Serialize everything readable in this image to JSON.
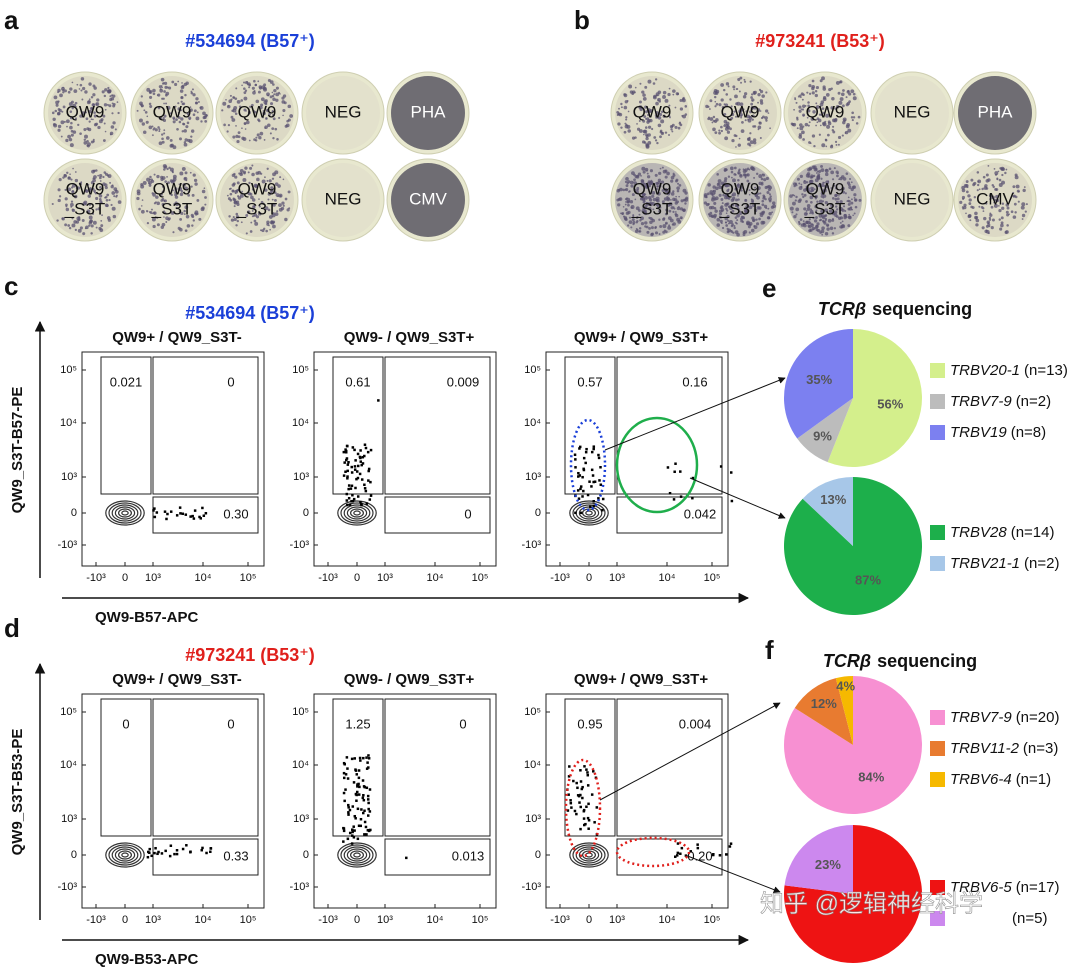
{
  "panels": {
    "a": {
      "label": "a",
      "title": "#534694 (B57⁺)",
      "wells": [
        [
          {
            "text": [
              "QW9"
            ],
            "tone": "light"
          },
          {
            "text": [
              "QW9"
            ],
            "tone": "light"
          },
          {
            "text": [
              "QW9"
            ],
            "tone": "light"
          },
          {
            "text": [
              "NEG"
            ],
            "tone": "blank"
          },
          {
            "text": [
              "PHA"
            ],
            "tone": "dark"
          }
        ],
        [
          {
            "text": [
              "QW9",
              "_S3T"
            ],
            "tone": "light"
          },
          {
            "text": [
              "QW9",
              "_S3T"
            ],
            "tone": "light"
          },
          {
            "text": [
              "QW9",
              "_S3T"
            ],
            "tone": "light"
          },
          {
            "text": [
              "NEG"
            ],
            "tone": "blank"
          },
          {
            "text": [
              "CMV"
            ],
            "tone": "dark"
          }
        ]
      ]
    },
    "b": {
      "label": "b",
      "title": "#973241 (B53⁺)",
      "wells": [
        [
          {
            "text": [
              "QW9"
            ],
            "tone": "light"
          },
          {
            "text": [
              "QW9"
            ],
            "tone": "light"
          },
          {
            "text": [
              "QW9"
            ],
            "tone": "light"
          },
          {
            "text": [
              "NEG"
            ],
            "tone": "blank"
          },
          {
            "text": [
              "PHA"
            ],
            "tone": "dark"
          }
        ],
        [
          {
            "text": [
              "QW9",
              "_S3T"
            ],
            "tone": "medium"
          },
          {
            "text": [
              "QW9",
              "_S3T"
            ],
            "tone": "medium"
          },
          {
            "text": [
              "QW9",
              "_S3T"
            ],
            "tone": "medium"
          },
          {
            "text": [
              "NEG"
            ],
            "tone": "blank"
          },
          {
            "text": [
              "CMV"
            ],
            "tone": "light"
          }
        ]
      ]
    },
    "c": {
      "label": "c",
      "title": "#534694 (B57⁺)",
      "y_axis": "QW9_S3T-B57-PE",
      "x_axis": "QW9-B57-APC",
      "yticks": [
        "10⁵",
        "10⁴",
        "10³",
        "0",
        "-10³"
      ],
      "xticks": [
        "-10³",
        "0",
        "10³",
        "10⁴",
        "10⁵"
      ],
      "plots": [
        {
          "title": "QW9+ / QW9_S3T-",
          "gates": [
            "0.021",
            "0",
            "0.30"
          ]
        },
        {
          "title": "QW9- / QW9_S3T+",
          "gates": [
            "0.61",
            "0.009",
            "0"
          ]
        },
        {
          "title": "QW9+ / QW9_S3T+",
          "gates": [
            "0.57",
            "0.16",
            "0.042"
          ]
        }
      ]
    },
    "d": {
      "label": "d",
      "title": "#973241 (B53⁺)",
      "y_axis": "QW9_S3T-B53-PE",
      "x_axis": "QW9-B53-APC",
      "yticks": [
        "10⁵",
        "10⁴",
        "10³",
        "0",
        "-10³"
      ],
      "xticks": [
        "-10³",
        "0",
        "10³",
        "10⁴",
        "10⁵"
      ],
      "plots": [
        {
          "title": "QW9+ / QW9_S3T-",
          "gates": [
            "0",
            "0",
            "0.33"
          ]
        },
        {
          "title": "QW9- / QW9_S3T+",
          "gates": [
            "1.25",
            "0",
            "0.013"
          ]
        },
        {
          "title": "QW9+ / QW9_S3T+",
          "gates": [
            "0.95",
            "0.004",
            "0.20"
          ]
        }
      ]
    },
    "e": {
      "label": "e",
      "title": [
        "TCRβ",
        "sequencing"
      ],
      "pies": [
        {
          "type": "pie",
          "values": [
            56,
            9,
            35
          ],
          "value_labels": [
            "56%",
            "9%",
            "35%"
          ],
          "series": [
            {
              "name": "TRBV20-1",
              "n": "(n=13)",
              "color": "#d4ef8c"
            },
            {
              "name": "TRBV7-9",
              "n": "(n=2)",
              "color": "#bcbcbc"
            },
            {
              "name": "TRBV19",
              "n": "(n=8)",
              "color": "#7c80f0"
            }
          ]
        },
        {
          "type": "pie",
          "values": [
            87,
            13
          ],
          "value_labels": [
            "87%",
            "13%"
          ],
          "series": [
            {
              "name": "TRBV28",
              "n": "(n=14)",
              "color": "#1daf4b"
            },
            {
              "name": "TRBV21-1",
              "n": "(n=2)",
              "color": "#a7c7e8"
            }
          ]
        }
      ]
    },
    "f": {
      "label": "f",
      "title": [
        "TCRβ",
        "sequencing"
      ],
      "pies": [
        {
          "type": "pie",
          "values": [
            84,
            12,
            4
          ],
          "value_labels": [
            "84%",
            "12%",
            "4%"
          ],
          "series": [
            {
              "name": "TRBV7-9",
              "n": "(n=20)",
              "color": "#f790d2"
            },
            {
              "name": "TRBV11-2",
              "n": "(n=3)",
              "color": "#e87b30"
            },
            {
              "name": "TRBV6-4",
              "n": "(n=1)",
              "color": "#f6b900"
            }
          ]
        },
        {
          "type": "pie",
          "values": [
            77,
            23
          ],
          "value_labels": [
            null,
            "23%"
          ],
          "series": [
            {
              "name": "TRBV6-5",
              "n": "(n=17)",
              "color": "#ee1313"
            },
            {
              "n": "(n=5)",
              "color": "#cc88ee"
            }
          ]
        }
      ]
    }
  },
  "watermark": "知乎 @逻辑神经科学"
}
